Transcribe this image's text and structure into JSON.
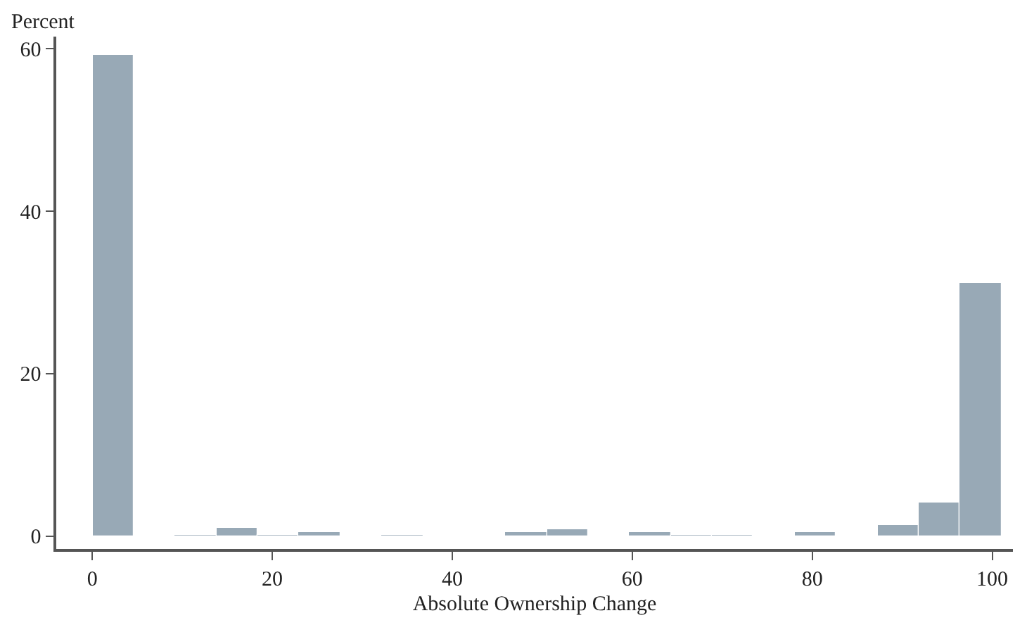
{
  "chart_data": {
    "type": "histogram",
    "xlabel": "Absolute Ownership Change",
    "ylabel": "Percent",
    "color": "#98a9b6",
    "bins": [
      0,
      4.59,
      9.18,
      13.77,
      18.36,
      22.95,
      27.55,
      32.14,
      36.73,
      41.32,
      45.91,
      50.5,
      55.09,
      59.68,
      64.27,
      68.86,
      73.45,
      78.05,
      82.64,
      87.23,
      91.82,
      96.41,
      101
    ],
    "values": [
      59.3,
      0,
      0.2,
      1.0,
      0.2,
      0.4,
      0,
      0.2,
      0,
      0,
      0.4,
      0.9,
      0,
      0.4,
      0.2,
      0.2,
      0,
      0.4,
      0,
      1.3,
      4.2,
      31.1
    ],
    "xlim": [
      -4,
      102.3
    ],
    "ylim": [
      -1.6,
      61.5
    ],
    "xticks": [
      0,
      20,
      40,
      60,
      80,
      100
    ],
    "yticks": [
      0,
      20,
      40,
      60
    ]
  }
}
